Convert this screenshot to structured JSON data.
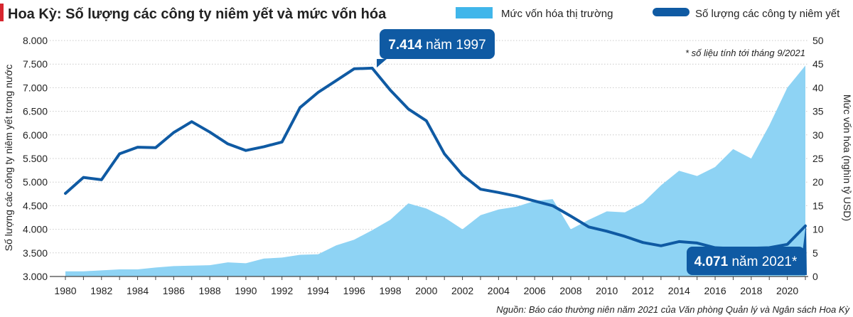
{
  "header": {
    "title": "Hoa Kỳ: Số lượng các công ty niêm yết và mức vốn hóa",
    "legend_area": "Mức vốn hóa thị trường",
    "legend_line": "Số lượng các công ty niêm yết"
  },
  "note": "* số liệu tính tới tháng 9/2021",
  "source": "Nguồn: Báo cáo thường niên năm 2021 của Văn phòng Quản lý và Ngân sách Hoa Kỳ",
  "colors": {
    "accent_red": "#d7262f",
    "area_fill": "#8ed3f4",
    "legend_area": "#40b6ea",
    "line": "#0f5aa3",
    "callout": "#0f5aa3",
    "grid": "#c9c9c9",
    "text": "#222222"
  },
  "chart_data": {
    "type": "line+area",
    "title": "Hoa Kỳ: Số lượng các công ty niêm yết và mức vốn hóa",
    "x": [
      1980,
      1981,
      1982,
      1983,
      1984,
      1985,
      1986,
      1987,
      1988,
      1989,
      1990,
      1991,
      1992,
      1993,
      1994,
      1995,
      1996,
      1997,
      1998,
      1999,
      2000,
      2001,
      2002,
      2003,
      2004,
      2005,
      2006,
      2007,
      2008,
      2009,
      2010,
      2011,
      2012,
      2013,
      2014,
      2015,
      2016,
      2017,
      2018,
      2019,
      2020,
      2021
    ],
    "x_ticks": [
      "1980",
      "1982",
      "1984",
      "1986",
      "1988",
      "1990",
      "1992",
      "1994",
      "1996",
      "1998",
      "2000",
      "2002",
      "2004",
      "2006",
      "2008",
      "2010",
      "2012",
      "2014",
      "2016",
      "2018",
      "2020"
    ],
    "y_left": {
      "label": "Số lượng các công ty niêm yết trong nước",
      "range": [
        3000,
        8000
      ],
      "ticks": [
        "3.000",
        "3.500",
        "4.000",
        "4.500",
        "5.000",
        "5.500",
        "6.000",
        "6.500",
        "7.000",
        "7.500",
        "8.000"
      ]
    },
    "y_right": {
      "label": "Mức vốn hóa (nghìn tỷ USD)",
      "range": [
        0,
        50
      ],
      "ticks": [
        "0",
        "5",
        "10",
        "15",
        "20",
        "25",
        "30",
        "35",
        "40",
        "45",
        "50"
      ]
    },
    "series": [
      {
        "name": "Mức vốn hóa thị trường",
        "type": "area",
        "axis": "right",
        "values": [
          [
            1980,
            1.1
          ],
          [
            1981,
            1.1
          ],
          [
            1982,
            1.3
          ],
          [
            1983,
            1.5
          ],
          [
            1984,
            1.5
          ],
          [
            1985,
            1.9
          ],
          [
            1986,
            2.2
          ],
          [
            1987,
            2.3
          ],
          [
            1988,
            2.4
          ],
          [
            1989,
            3.0
          ],
          [
            1990,
            2.8
          ],
          [
            1991,
            3.8
          ],
          [
            1992,
            4.0
          ],
          [
            1993,
            4.6
          ],
          [
            1994,
            4.7
          ],
          [
            1995,
            6.6
          ],
          [
            1996,
            7.8
          ],
          [
            1997,
            9.8
          ],
          [
            1998,
            12.0
          ],
          [
            1999,
            15.5
          ],
          [
            2000,
            14.4
          ],
          [
            2001,
            12.5
          ],
          [
            2002,
            10.0
          ],
          [
            2003,
            13.0
          ],
          [
            2004,
            14.2
          ],
          [
            2005,
            14.8
          ],
          [
            2006,
            16.0
          ],
          [
            2007,
            16.4
          ],
          [
            2008,
            10.0
          ],
          [
            2009,
            12.0
          ],
          [
            2010,
            13.8
          ],
          [
            2011,
            13.6
          ],
          [
            2012,
            15.6
          ],
          [
            2013,
            19.3
          ],
          [
            2014,
            22.4
          ],
          [
            2015,
            21.3
          ],
          [
            2016,
            23.2
          ],
          [
            2017,
            27.0
          ],
          [
            2018,
            25.0
          ],
          [
            2019,
            32.0
          ],
          [
            2020,
            40.0
          ],
          [
            2021,
            44.7
          ]
        ]
      },
      {
        "name": "Số lượng các công ty niêm yết",
        "type": "line",
        "axis": "left",
        "values": [
          [
            1980,
            4760
          ],
          [
            1981,
            5100
          ],
          [
            1982,
            5050
          ],
          [
            1983,
            5600
          ],
          [
            1984,
            5740
          ],
          [
            1985,
            5730
          ],
          [
            1986,
            6050
          ],
          [
            1987,
            6280
          ],
          [
            1988,
            6060
          ],
          [
            1989,
            5810
          ],
          [
            1990,
            5670
          ],
          [
            1991,
            5750
          ],
          [
            1992,
            5850
          ],
          [
            1993,
            6580
          ],
          [
            1994,
            6900
          ],
          [
            1995,
            7150
          ],
          [
            1996,
            7400
          ],
          [
            1997,
            7414
          ],
          [
            1998,
            6950
          ],
          [
            1999,
            6550
          ],
          [
            2000,
            6300
          ],
          [
            2001,
            5600
          ],
          [
            2002,
            5150
          ],
          [
            2003,
            4850
          ],
          [
            2004,
            4780
          ],
          [
            2005,
            4700
          ],
          [
            2006,
            4600
          ],
          [
            2007,
            4500
          ],
          [
            2008,
            4280
          ],
          [
            2009,
            4050
          ],
          [
            2010,
            3960
          ],
          [
            2011,
            3850
          ],
          [
            2012,
            3720
          ],
          [
            2013,
            3650
          ],
          [
            2014,
            3740
          ],
          [
            2015,
            3710
          ],
          [
            2016,
            3610
          ],
          [
            2017,
            3590
          ],
          [
            2018,
            3600
          ],
          [
            2019,
            3610
          ],
          [
            2020,
            3680
          ],
          [
            2021,
            4071
          ]
        ]
      }
    ],
    "annotations": [
      {
        "year": 1997,
        "value": 7414,
        "bold": "7.414",
        "rest": " năm 1997"
      },
      {
        "year": 2021,
        "value": 4071,
        "bold": "4.071",
        "rest": " năm 2021*"
      }
    ],
    "grid": true
  }
}
